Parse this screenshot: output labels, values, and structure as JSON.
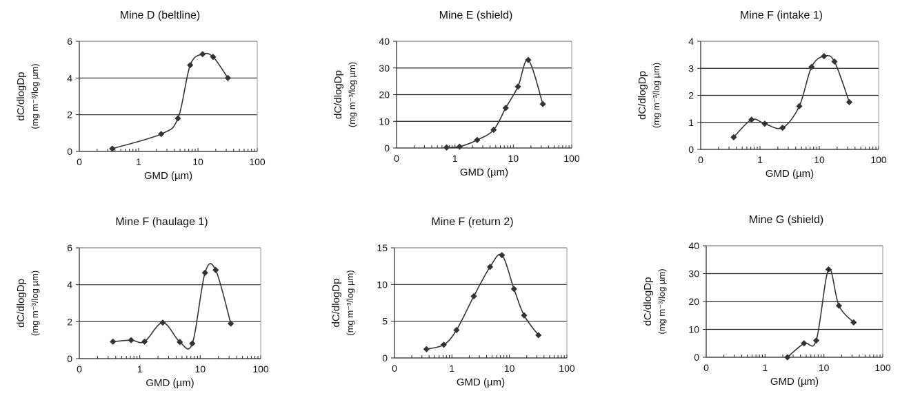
{
  "chart_data": [
    {
      "type": "line",
      "title": "Mine D (beltline)",
      "xlabel": "GMD (µm)",
      "ylabel": "dC/dlogDp",
      "ylabel_units": "(mg m⁻³/log µm)",
      "xscale": "log",
      "xlim": [
        0.1,
        100
      ],
      "ylim": [
        0,
        6
      ],
      "x_ticks": [
        "0",
        "1",
        "10",
        "100"
      ],
      "y_ticks": [
        "0",
        "2",
        "4",
        "6"
      ],
      "grid": "horizontal",
      "x": [
        0.36,
        2.4,
        4.6,
        7.4,
        12,
        18,
        32
      ],
      "y": [
        0.15,
        0.95,
        1.8,
        4.7,
        5.3,
        5.15,
        4.0
      ]
    },
    {
      "type": "line",
      "title": "Mine E (shield)",
      "xlabel": "GMD (µm)",
      "ylabel": "dC/dlogDp",
      "ylabel_units": "(mg m⁻³/log µm)",
      "xscale": "log",
      "xlim": [
        0.1,
        100
      ],
      "ylim": [
        0,
        40
      ],
      "x_ticks": [
        "0",
        "1",
        "10",
        "100"
      ],
      "y_ticks": [
        "0",
        "10",
        "20",
        "30",
        "40"
      ],
      "grid": "horizontal",
      "x": [
        0.72,
        1.2,
        2.4,
        4.6,
        7.4,
        12,
        18,
        32
      ],
      "y": [
        0.2,
        0.5,
        3,
        6.8,
        15,
        23,
        33,
        16.5
      ]
    },
    {
      "type": "line",
      "title": "Mine F (intake 1)",
      "xlabel": "GMD (µm)",
      "ylabel": "dC/dlogDp",
      "ylabel_units": "(mg m⁻³/log µm)",
      "xscale": "log",
      "xlim": [
        0.1,
        100
      ],
      "ylim": [
        0,
        4
      ],
      "x_ticks": [
        "0",
        "1",
        "10",
        "100"
      ],
      "y_ticks": [
        "0",
        "1",
        "2",
        "3",
        "4"
      ],
      "grid": "horizontal",
      "x": [
        0.36,
        0.72,
        1.2,
        2.4,
        4.6,
        7.4,
        12,
        18,
        32
      ],
      "y": [
        0.45,
        1.1,
        0.95,
        0.8,
        1.6,
        3.05,
        3.45,
        3.25,
        1.75
      ]
    },
    {
      "type": "line",
      "title": "Mine F (haulage 1)",
      "xlabel": "GMD (µm)",
      "ylabel": "dC/dlogDp",
      "ylabel_units": "(mg m⁻³/log µm)",
      "xscale": "log",
      "xlim": [
        0.1,
        100
      ],
      "ylim": [
        0,
        6
      ],
      "x_ticks": [
        "0",
        "1",
        "10",
        "100"
      ],
      "y_ticks": [
        "0",
        "2",
        "4",
        "6"
      ],
      "grid": "horizontal",
      "x": [
        0.36,
        0.72,
        1.2,
        2.4,
        4.6,
        7.4,
        12,
        18,
        32
      ],
      "y": [
        0.92,
        1.0,
        0.92,
        1.95,
        0.9,
        0.82,
        4.65,
        4.8,
        1.9
      ]
    },
    {
      "type": "line",
      "title": "Mine F (return 2)",
      "xlabel": "GMD (µm)",
      "ylabel": "dC/dlogDp",
      "ylabel_units": "(mg m⁻³/log µm)",
      "xscale": "log",
      "xlim": [
        0.1,
        100
      ],
      "ylim": [
        0,
        15
      ],
      "x_ticks": [
        "0",
        "1",
        "10",
        "100"
      ],
      "y_ticks": [
        "0",
        "5",
        "10",
        "15"
      ],
      "grid": "horizontal",
      "x": [
        0.36,
        0.72,
        1.2,
        2.4,
        4.6,
        7.4,
        12,
        18,
        32
      ],
      "y": [
        1.2,
        1.8,
        3.8,
        8.4,
        12.4,
        14,
        9.4,
        5.8,
        3.1
      ]
    },
    {
      "type": "line",
      "title": "Mine G (shield)",
      "xlabel": "GMD (µm)",
      "ylabel": "dC/dlogDp",
      "ylabel_units": "(mg m⁻³/log µm)",
      "xscale": "log",
      "xlim": [
        0.1,
        100
      ],
      "ylim": [
        0,
        40
      ],
      "x_ticks": [
        "0",
        "1",
        "10",
        "100"
      ],
      "y_ticks": [
        "0",
        "10",
        "20",
        "30",
        "40"
      ],
      "grid": "horizontal",
      "x": [
        2.4,
        4.6,
        7.4,
        12,
        18,
        32
      ],
      "y": [
        0,
        5,
        6,
        31.5,
        18.5,
        12.5
      ]
    }
  ]
}
